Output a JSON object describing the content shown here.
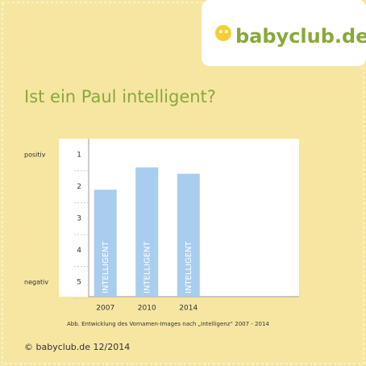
{
  "logo": "babyclub.de",
  "copyright": "© babyclub.de 12/2014",
  "chart_data": {
    "type": "bar",
    "title": "Ist ein Paul intelligent?",
    "caption": "Abb. Entwicklung des Vornamen-Images nach „Intelligenz“ 2007 - 2014",
    "categories": [
      "2007",
      "2010",
      "2014"
    ],
    "values": [
      2.1,
      1.4,
      1.6
    ],
    "bar_text": [
      "INTELLIGENT",
      "INTELLIGENT",
      "INTELLIGENT"
    ],
    "color": "#a9cdee",
    "ylim": [
      5.5,
      0.5
    ],
    "yticks": [
      1,
      2,
      3,
      4,
      5
    ],
    "y_pole_labels": {
      "top": "positiv",
      "bottom": "negativ"
    }
  }
}
